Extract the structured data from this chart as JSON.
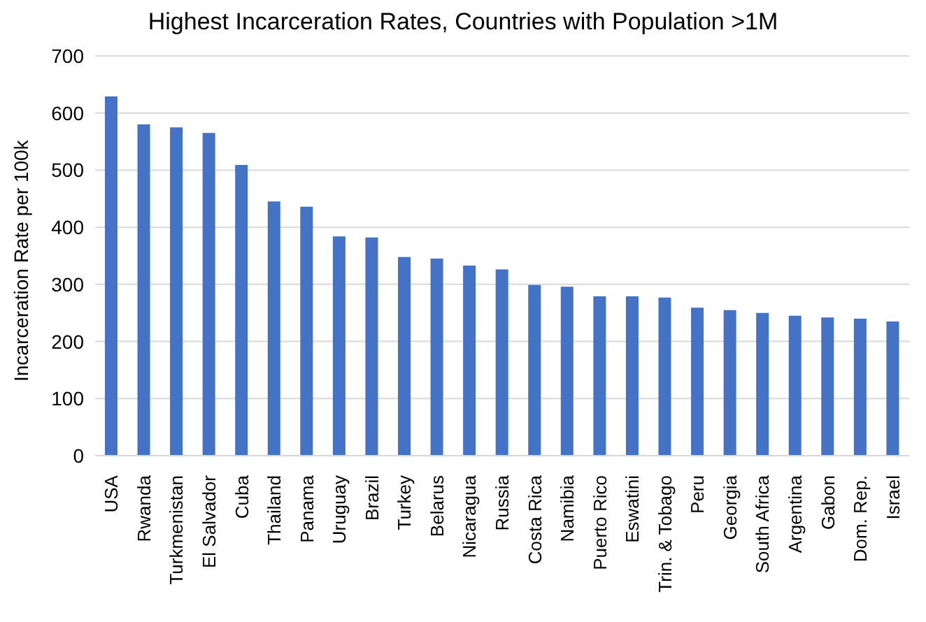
{
  "chart_data": {
    "type": "bar",
    "title": "Highest Incarceration Rates, Countries with Population >1M",
    "ylabel": "Incarceration Rate per 100k",
    "categories": [
      "USA",
      "Rwanda",
      "Turkmenistan",
      "El Salvador",
      "Cuba",
      "Thailand",
      "Panama",
      "Uruguay",
      "Brazil",
      "Turkey",
      "Belarus",
      "Nicaragua",
      "Russia",
      "Costa Rica",
      "Namibia",
      "Puerto Rico",
      "Eswatini",
      "Trin. & Tobago",
      "Peru",
      "Georgia",
      "South Africa",
      "Argentina",
      "Gabon",
      "Dom. Rep.",
      "Israel"
    ],
    "values": [
      629,
      580,
      575,
      565,
      509,
      445,
      436,
      384,
      382,
      348,
      345,
      333,
      326,
      299,
      296,
      279,
      279,
      277,
      259,
      255,
      250,
      245,
      242,
      240,
      235
    ],
    "color": "#4472c4",
    "ylim": [
      0,
      700
    ],
    "yticks": [
      0,
      100,
      200,
      300,
      400,
      500,
      600,
      700
    ],
    "grid": "y"
  }
}
